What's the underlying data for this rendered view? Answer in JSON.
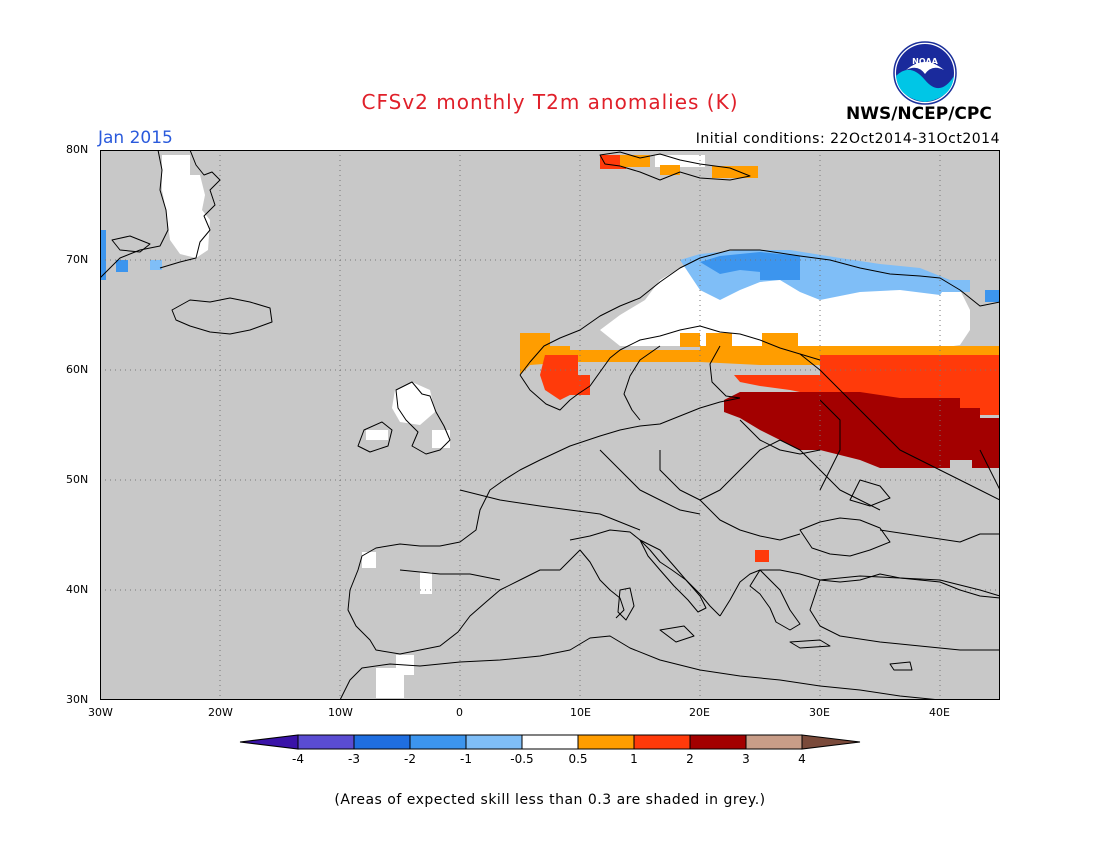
{
  "header": {
    "title": "CFSv2 monthly T2m anomalies (K)",
    "period": "Jan 2015",
    "initial_conditions": "Initial conditions: 22Oct2014-31Oct2014",
    "agency": "NWS/NCEP/CPC",
    "logo_text": "NOAA"
  },
  "map": {
    "lat_labels": [
      "80N",
      "70N",
      "60N",
      "50N",
      "40N",
      "30N"
    ],
    "lon_labels": [
      "30W",
      "20W",
      "10W",
      "0",
      "10E",
      "20E",
      "30E",
      "40E"
    ],
    "grey_meaning": "low skill"
  },
  "colorbar": {
    "labels": [
      "-4",
      "-3",
      "-2",
      "-1",
      "-0.5",
      "0.5",
      "1",
      "2",
      "3",
      "4"
    ],
    "colors": [
      "#3a13a8",
      "#5a4cd2",
      "#1f6ee0",
      "#3c95ee",
      "#7fbef7",
      "#ffffff",
      "#ff9d00",
      "#ff3a0a",
      "#a30000",
      "#c89d88",
      "#7a4a3a"
    ]
  },
  "footnote": "(Areas of expected skill less than 0.3 are shaded in grey.)"
}
